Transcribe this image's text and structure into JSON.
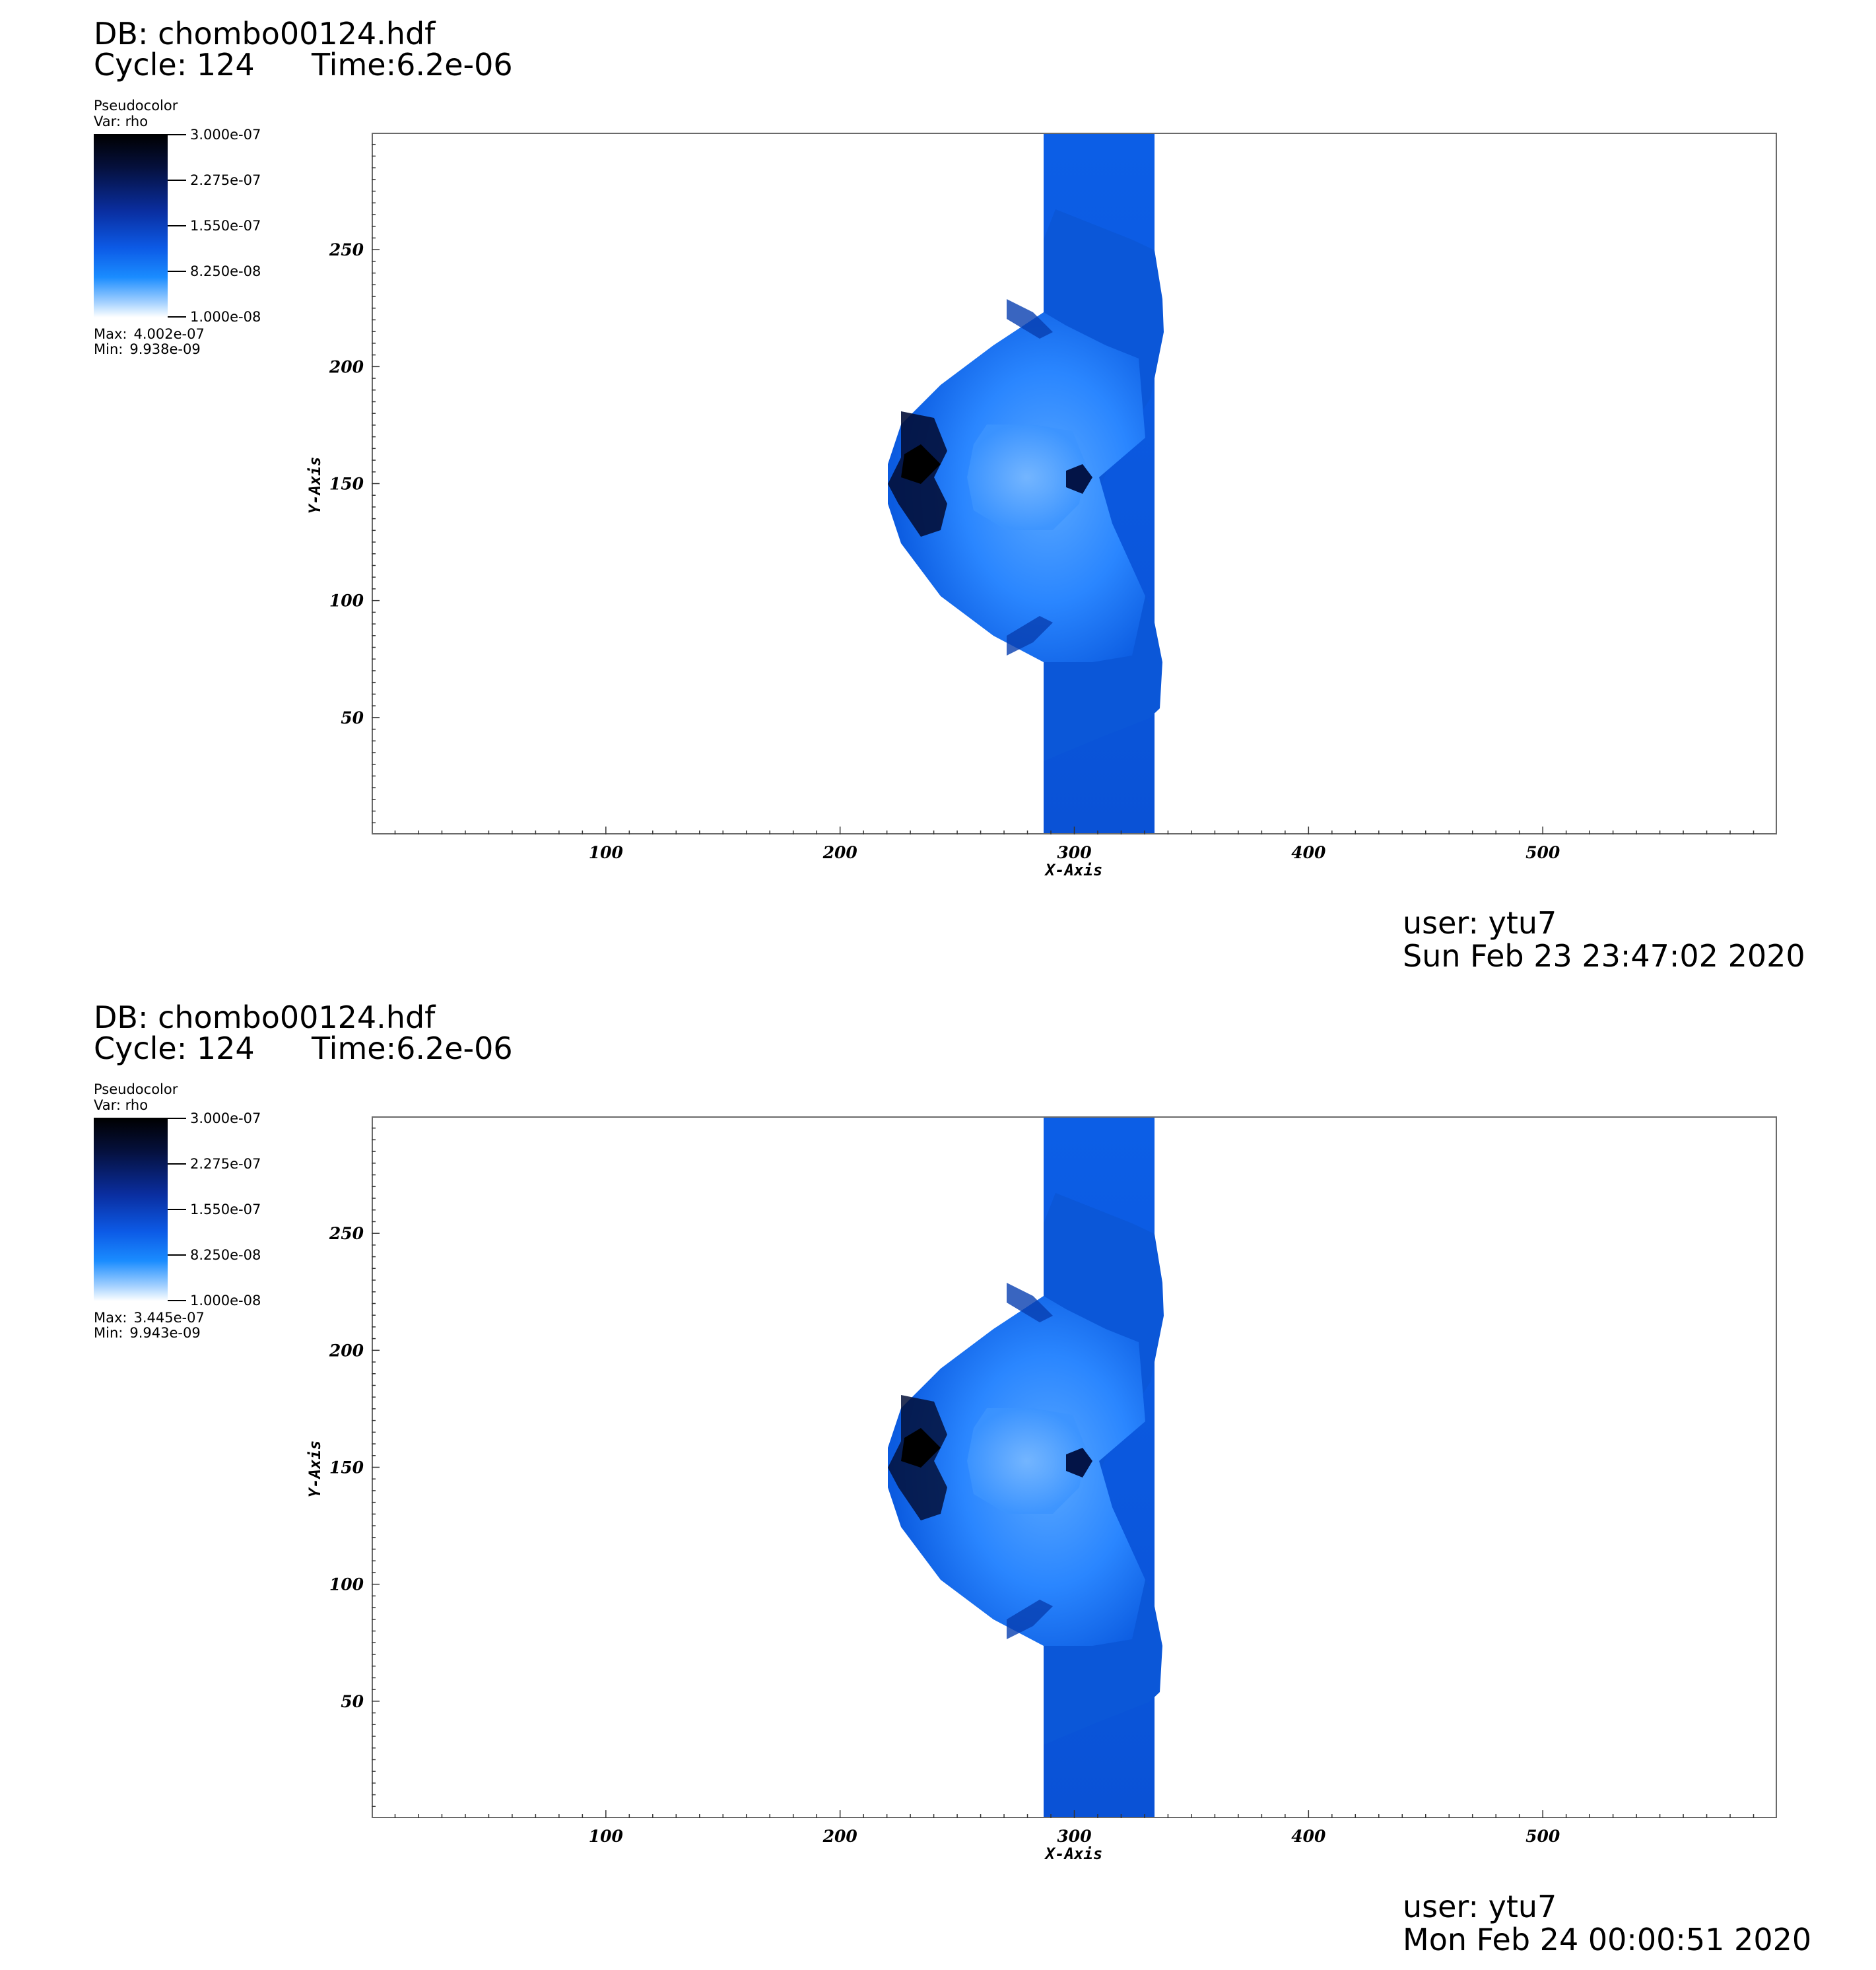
{
  "panels": [
    {
      "db": "DB: chombo00124.hdf",
      "cycle": "Cycle: 124",
      "time": "Time:6.2e-06",
      "legend": {
        "title": "Pseudocolor",
        "var": "Var: rho",
        "ticks": [
          "3.000e-07",
          "2.275e-07",
          "1.550e-07",
          "8.250e-08",
          "1.000e-08"
        ],
        "max_label": "Max:",
        "max_value": "4.002e-07",
        "min_label": "Min:",
        "min_value": "9.938e-09"
      },
      "user": "user: ytu7",
      "date": "Sun Feb 23 23:47:02 2020"
    },
    {
      "db": "DB: chombo00124.hdf",
      "cycle": "Cycle: 124",
      "time": "Time:6.2e-06",
      "legend": {
        "title": "Pseudocolor",
        "var": "Var: rho",
        "ticks": [
          "3.000e-07",
          "2.275e-07",
          "1.550e-07",
          "8.250e-08",
          "1.000e-08"
        ],
        "max_label": "Max:",
        "max_value": "3.445e-07",
        "min_label": "Min:",
        "min_value": "9.943e-09"
      },
      "user": "user: ytu7",
      "date": "Mon Feb 24 00:00:51 2020"
    }
  ],
  "chart_data": [
    {
      "type": "heatmap",
      "title": "",
      "xlabel": "X-Axis",
      "ylabel": "Y-Axis",
      "xlim": [
        0,
        600
      ],
      "ylim": [
        0,
        300
      ],
      "x_ticks": [
        100,
        200,
        300,
        400,
        500
      ],
      "y_ticks": [
        50,
        100,
        150,
        200,
        250
      ],
      "colorbar_range": [
        1e-08,
        3e-07
      ],
      "colors": {
        "dark": "#000000",
        "deep": "#061a66",
        "mid": "#0a55d8",
        "bright": "#1e7cff",
        "light": "#8cc3ff",
        "background": "#ffffff"
      }
    },
    {
      "type": "heatmap",
      "title": "",
      "xlabel": "X-Axis",
      "ylabel": "Y-Axis",
      "xlim": [
        0,
        600
      ],
      "ylim": [
        0,
        300
      ],
      "x_ticks": [
        100,
        200,
        300,
        400,
        500
      ],
      "y_ticks": [
        50,
        100,
        150,
        200,
        250
      ],
      "colorbar_range": [
        1e-08,
        3e-07
      ],
      "colors": {
        "dark": "#000000",
        "deep": "#061a66",
        "mid": "#0a55d8",
        "bright": "#1e7cff",
        "light": "#8cc3ff",
        "background": "#ffffff"
      }
    }
  ]
}
